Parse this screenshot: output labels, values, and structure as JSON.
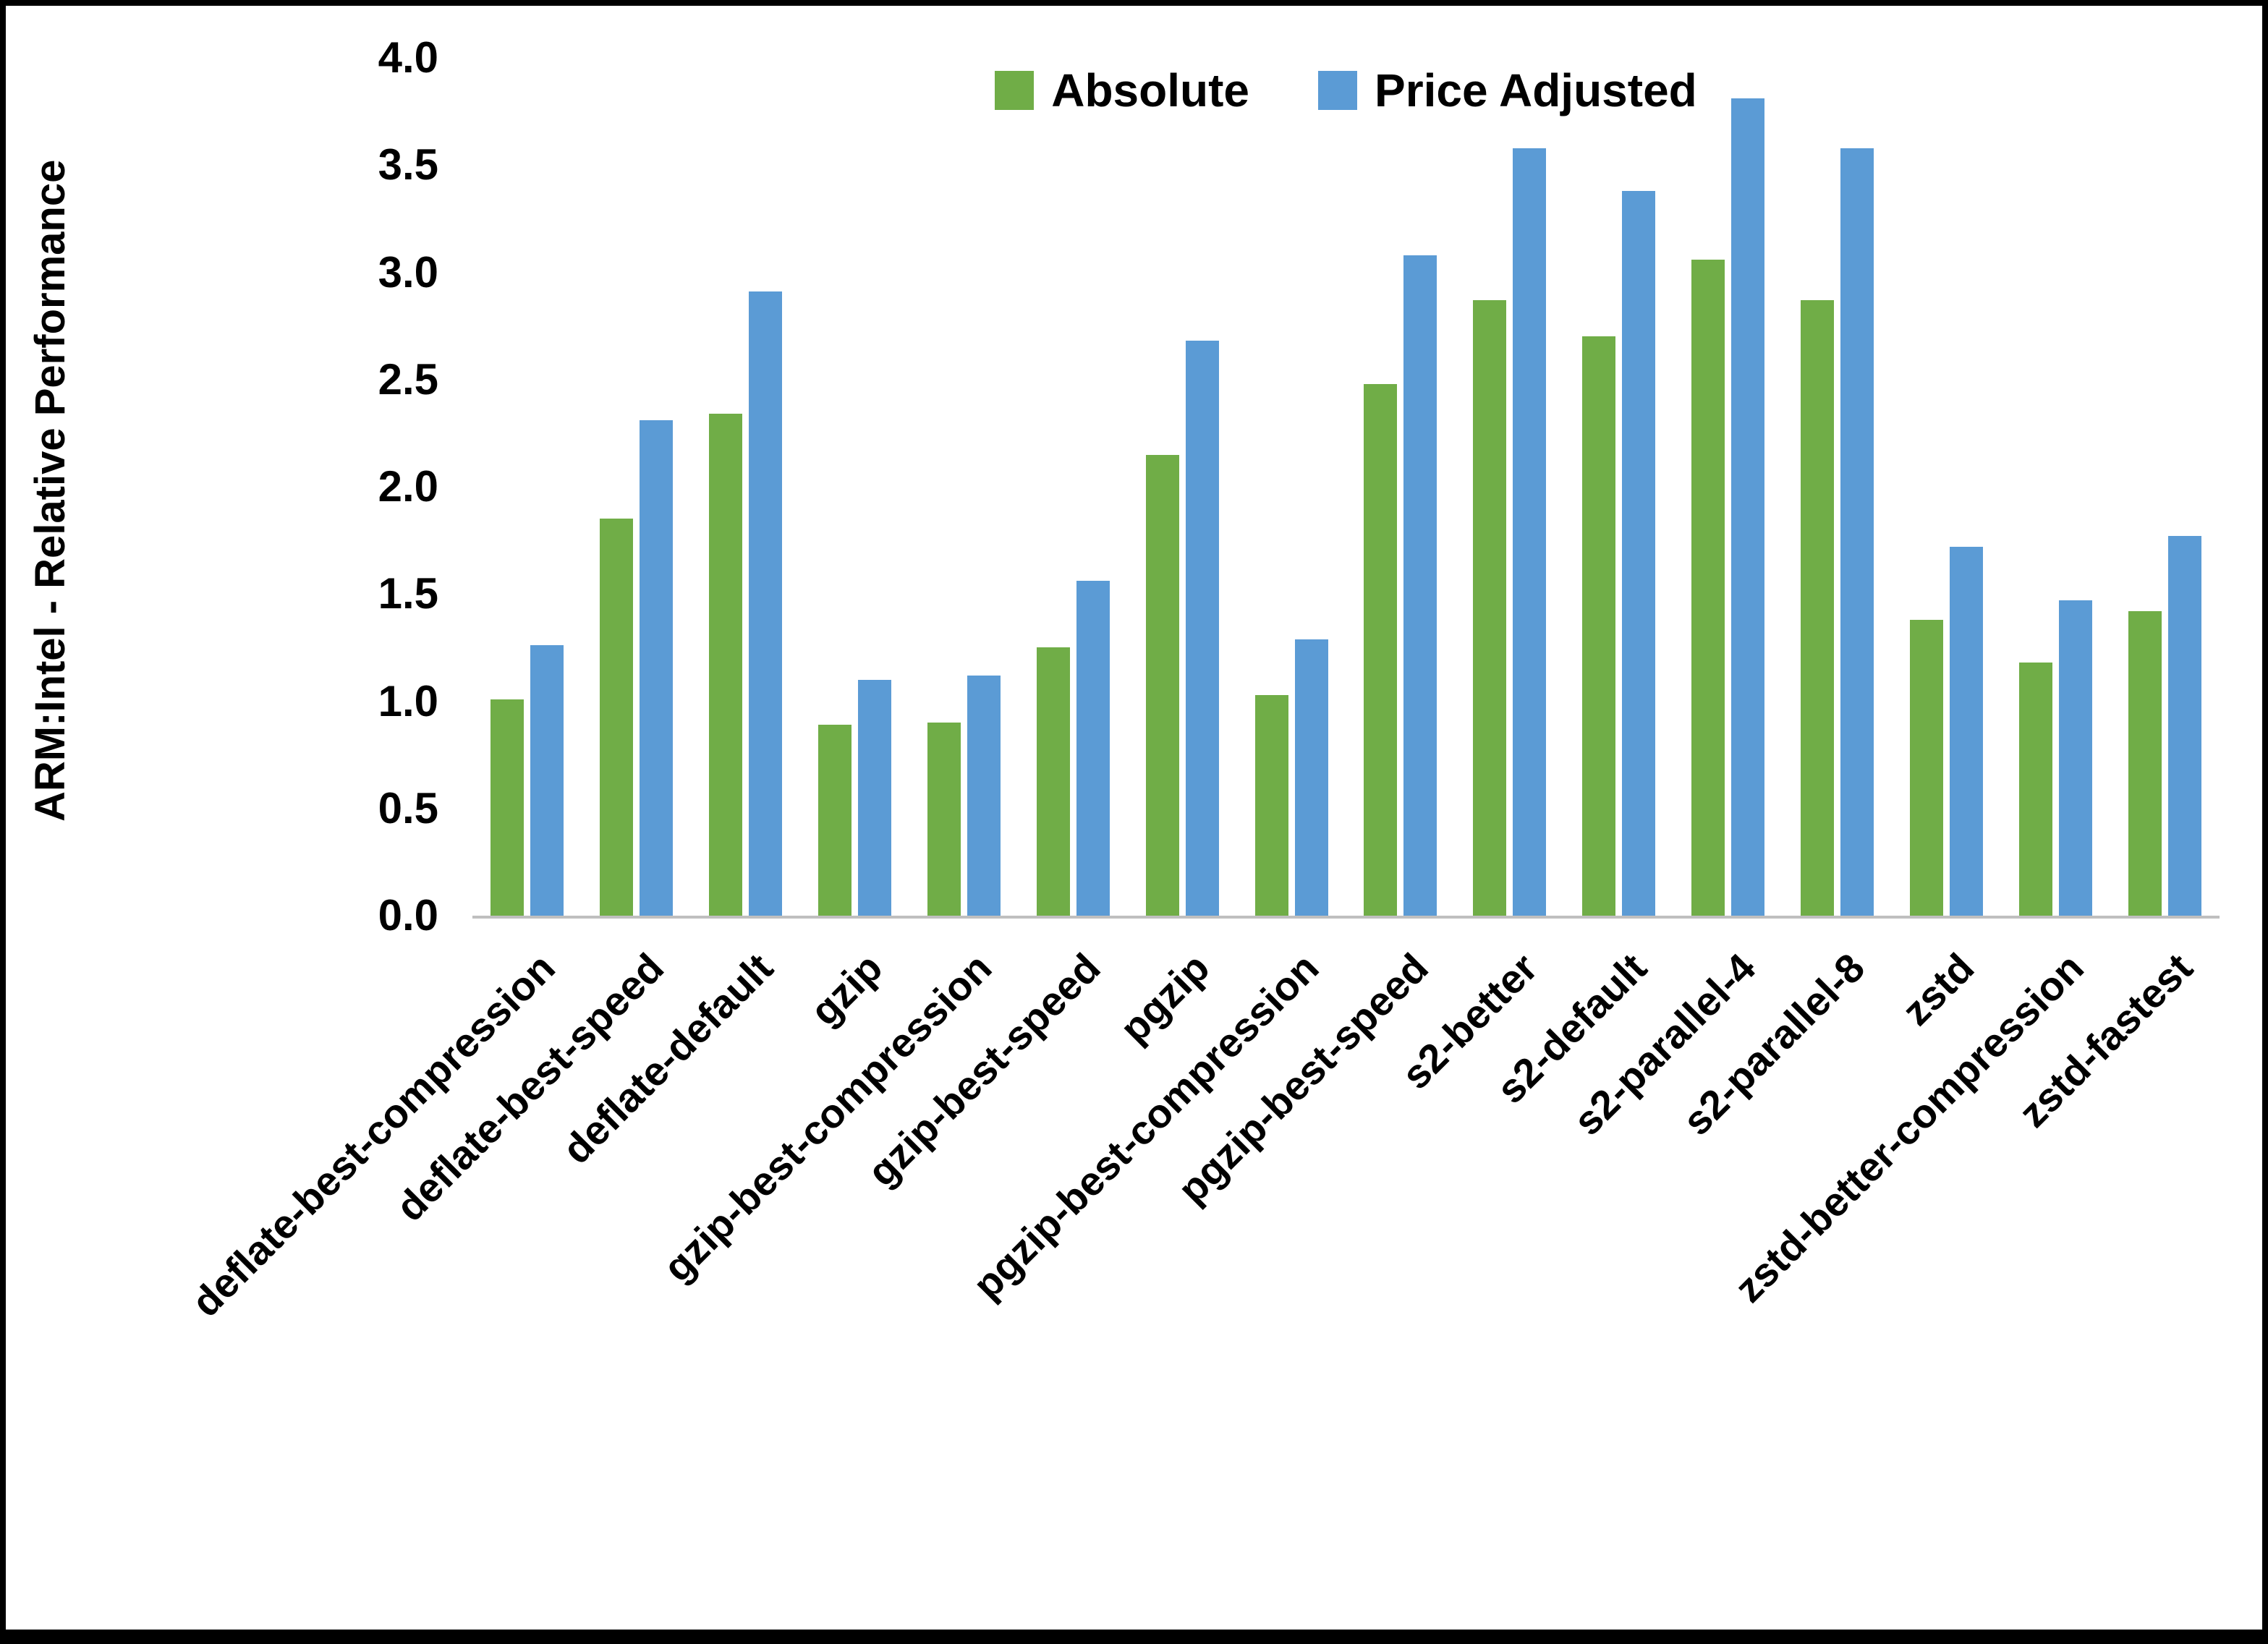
{
  "chart_data": {
    "type": "bar",
    "title": "",
    "xlabel": "",
    "ylabel": "ARM:Intel - Relative Performance",
    "ylim": [
      0,
      4.0
    ],
    "ytick_step": 0.5,
    "yticks": [
      "0.0",
      "0.5",
      "1.0",
      "1.5",
      "2.0",
      "2.5",
      "3.0",
      "3.5",
      "4.0"
    ],
    "grid": false,
    "legend_position": "top-center",
    "axis_line_color": "#BFBFBF",
    "categories": [
      "deflate-best-compression",
      "deflate-best-speed",
      "deflate-default",
      "gzip",
      "gzip-best-compression",
      "gzip-best-speed",
      "pgzip",
      "pgzip-best-compression",
      "pgzip-best-speed",
      "s2-better",
      "s2-default",
      "s2-parallel-4",
      "s2-parallel-8",
      "zstd",
      "zstd-better-compression",
      "zstd-fastest"
    ],
    "series": [
      {
        "name": "Absolute",
        "color": "#70AD47",
        "values": [
          1.01,
          1.85,
          2.34,
          0.89,
          0.9,
          1.25,
          2.15,
          1.03,
          2.48,
          2.87,
          2.7,
          3.06,
          2.87,
          1.38,
          1.18,
          1.42
        ]
      },
      {
        "name": "Price Adjusted",
        "color": "#5B9BD5",
        "values": [
          1.26,
          2.31,
          2.91,
          1.1,
          1.12,
          1.56,
          2.68,
          1.29,
          3.08,
          3.58,
          3.38,
          3.81,
          3.58,
          1.72,
          1.47,
          1.77
        ]
      }
    ]
  }
}
